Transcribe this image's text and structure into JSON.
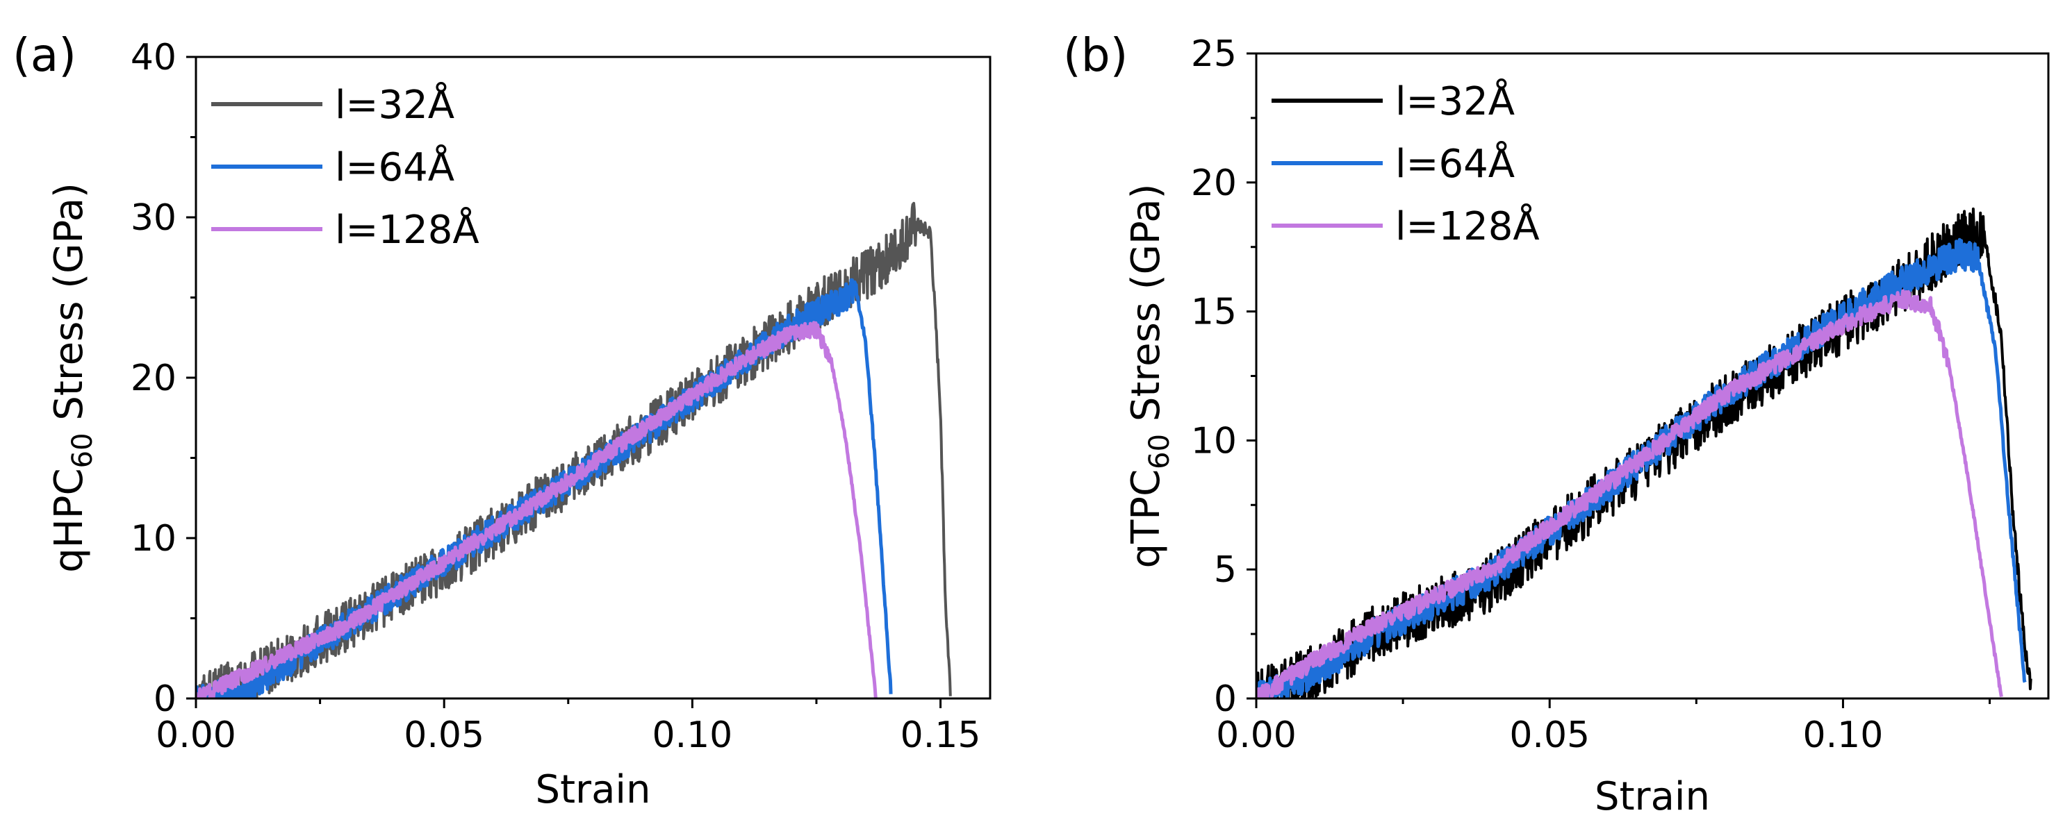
{
  "chart_data": [
    {
      "panel_label": "(a)",
      "type": "line",
      "xlabel": "Strain",
      "ylabel": {
        "prefix": "qHPC",
        "subscript": "60",
        "suffix": " Stress (GPa)"
      },
      "xlim": [
        0,
        0.16
      ],
      "ylim": [
        0,
        40
      ],
      "xticks": [
        0,
        0.05,
        0.1,
        0.15
      ],
      "xtick_labels": [
        "0.00",
        "0.05",
        "0.10",
        "0.15"
      ],
      "yticks": [
        0,
        10,
        20,
        30,
        40
      ],
      "ytick_labels": [
        "0",
        "10",
        "20",
        "30",
        "40"
      ],
      "legend_position": "top-left",
      "series": [
        {
          "name": "l=32Å",
          "color": "#555555",
          "noise": 1.6,
          "x": [
            0.0,
            0.01,
            0.03,
            0.05,
            0.07,
            0.09,
            0.11,
            0.13,
            0.14,
            0.145,
            0.148,
            0.15,
            0.151,
            0.152
          ],
          "y": [
            0.0,
            1.0,
            4.5,
            8.2,
            12.5,
            16.5,
            21.0,
            25.5,
            27.5,
            29.5,
            29.0,
            18.0,
            6.0,
            0.5
          ]
        },
        {
          "name": "l=64Å",
          "color": "#1e6fd9",
          "noise": 0.9,
          "x": [
            0.0,
            0.01,
            0.03,
            0.05,
            0.07,
            0.09,
            0.11,
            0.12,
            0.13,
            0.133,
            0.135,
            0.137,
            0.139,
            0.14
          ],
          "y": [
            0.0,
            0.5,
            4.5,
            8.5,
            12.5,
            16.5,
            21.0,
            23.2,
            24.8,
            25.5,
            22.0,
            14.0,
            5.0,
            0.5
          ]
        },
        {
          "name": "l=128Å",
          "color": "#c278e0",
          "noise": 0.5,
          "x": [
            0.0,
            0.01,
            0.03,
            0.05,
            0.07,
            0.09,
            0.11,
            0.12,
            0.125,
            0.128,
            0.131,
            0.134,
            0.136,
            0.137
          ],
          "y": [
            0.0,
            1.5,
            4.5,
            8.5,
            12.5,
            16.8,
            21.0,
            22.8,
            23.0,
            21.0,
            16.0,
            9.0,
            3.0,
            0.0
          ]
        }
      ]
    },
    {
      "panel_label": "(b)",
      "type": "line",
      "xlabel": "Strain",
      "ylabel": {
        "prefix": "qTPC",
        "subscript": "60",
        "suffix": " Stress (GPa)"
      },
      "xlim": [
        0,
        0.135
      ],
      "ylim": [
        0,
        25
      ],
      "xticks": [
        0,
        0.05,
        0.1
      ],
      "xtick_labels": [
        "0.00",
        "0.05",
        "0.10"
      ],
      "yticks": [
        0,
        5,
        10,
        15,
        20,
        25
      ],
      "ytick_labels": [
        "0",
        "5",
        "10",
        "15",
        "20",
        "25"
      ],
      "legend_position": "top-left",
      "series": [
        {
          "name": "l=32Å",
          "color": "#000000",
          "noise": 1.1,
          "x": [
            0.0,
            0.01,
            0.02,
            0.04,
            0.06,
            0.08,
            0.1,
            0.11,
            0.12,
            0.124,
            0.127,
            0.129,
            0.131,
            0.132
          ],
          "y": [
            0.0,
            1.0,
            2.5,
            4.5,
            8.0,
            11.5,
            14.5,
            16.0,
            17.8,
            18.0,
            14.0,
            7.0,
            2.0,
            0.5
          ]
        },
        {
          "name": "l=64Å",
          "color": "#1e6fd9",
          "noise": 0.6,
          "x": [
            0.0,
            0.01,
            0.02,
            0.04,
            0.06,
            0.08,
            0.1,
            0.11,
            0.12,
            0.123,
            0.126,
            0.128,
            0.13,
            0.131
          ],
          "y": [
            0.0,
            1.0,
            2.5,
            4.8,
            8.2,
            11.8,
            14.8,
            16.2,
            17.2,
            17.0,
            13.5,
            8.0,
            3.0,
            0.5
          ]
        },
        {
          "name": "l=128Å",
          "color": "#c278e0",
          "noise": 0.35,
          "x": [
            0.0,
            0.01,
            0.02,
            0.04,
            0.06,
            0.08,
            0.1,
            0.11,
            0.115,
            0.118,
            0.121,
            0.124,
            0.126,
            0.127
          ],
          "y": [
            0.0,
            1.5,
            2.8,
            5.0,
            8.3,
            11.8,
            14.5,
            15.5,
            15.2,
            13.0,
            9.0,
            4.5,
            1.5,
            0.0
          ]
        }
      ]
    }
  ]
}
